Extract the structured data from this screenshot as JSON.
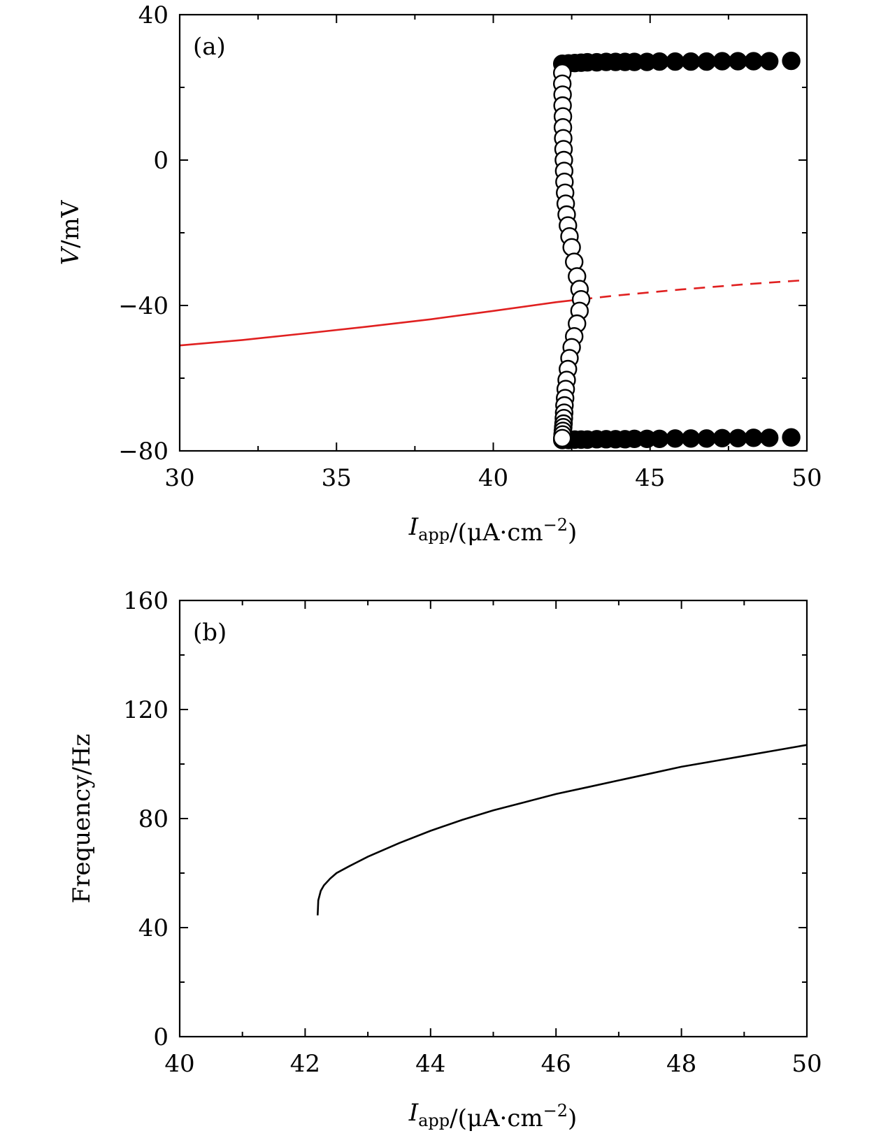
{
  "chart_data": [
    {
      "type": "scatter",
      "panel_label": "(a)",
      "xlabel": "I_app/(μA·cm^−2)",
      "ylabel": "V/mV",
      "xlim": [
        30,
        50
      ],
      "ylim": [
        -80,
        40
      ],
      "x_ticks": [
        30,
        35,
        40,
        45,
        50
      ],
      "y_ticks": [
        -80,
        -40,
        0,
        40
      ],
      "x_tick_labels": [
        "30",
        "35",
        "40",
        "45",
        "50"
      ],
      "y_tick_labels": [
        "−80",
        "−40",
        "0",
        "40"
      ],
      "grid": false,
      "colors": {
        "equilibrium": "#e02020",
        "markers": "#000000"
      },
      "series": [
        {
          "style": "solid-line",
          "color": "#e02020",
          "x": [
            30,
            32,
            34,
            36,
            38,
            40,
            42,
            42.8
          ],
          "y": [
            -51,
            -49.5,
            -47.7,
            -45.8,
            -43.8,
            -41.5,
            -39.1,
            -38.3
          ]
        },
        {
          "style": "dashed-line",
          "color": "#e02020",
          "x": [
            42.8,
            44,
            46,
            48,
            50
          ],
          "y": [
            -38.3,
            -37.2,
            -35.6,
            -34.2,
            -33
          ]
        },
        {
          "style": "filled-circles",
          "x": [
            42.2,
            42.4,
            42.6,
            42.8,
            43.0,
            43.3,
            43.6,
            43.9,
            44.2,
            44.5,
            44.9,
            45.3,
            45.8,
            46.3,
            46.8,
            47.3,
            47.8,
            48.3,
            48.8,
            49.5
          ],
          "y": [
            26.5,
            26.6,
            26.7,
            26.8,
            26.9,
            26.9,
            27,
            27,
            27,
            27,
            27,
            27.1,
            27.1,
            27.1,
            27.1,
            27.2,
            27.2,
            27.2,
            27.2,
            27.3
          ]
        },
        {
          "style": "filled-circles",
          "x": [
            42.2,
            42.4,
            42.6,
            42.8,
            43.0,
            43.3,
            43.6,
            43.9,
            44.2,
            44.5,
            44.9,
            45.3,
            45.8,
            46.3,
            46.8,
            47.3,
            47.8,
            48.3,
            48.8,
            49.5
          ],
          "y": [
            -77,
            -77,
            -76.9,
            -76.9,
            -76.9,
            -76.8,
            -76.8,
            -76.8,
            -76.8,
            -76.7,
            -76.7,
            -76.7,
            -76.6,
            -76.6,
            -76.6,
            -76.5,
            -76.5,
            -76.4,
            -76.4,
            -76.3
          ]
        },
        {
          "style": "open-circles",
          "x": [
            42.2,
            42.2,
            42.21,
            42.21,
            42.22,
            42.22,
            42.23,
            42.24,
            42.25,
            42.26,
            42.27,
            42.29,
            42.31,
            42.34,
            42.38,
            42.43,
            42.5,
            42.58,
            42.67,
            42.75,
            42.8,
            42.75,
            42.67,
            42.58,
            42.5,
            42.43,
            42.38,
            42.34,
            42.31,
            42.29,
            42.27,
            42.26,
            42.25,
            42.24,
            42.23,
            42.22,
            42.21,
            42.2
          ],
          "y": [
            24,
            21,
            18,
            15,
            12,
            9,
            6,
            3,
            0,
            -3,
            -6,
            -9,
            -12,
            -15,
            -18,
            -21,
            -24,
            -28,
            -32,
            -35.5,
            -38.3,
            -41.5,
            -45,
            -48.5,
            -51.5,
            -54.5,
            -57.5,
            -60.5,
            -63,
            -65.5,
            -67.5,
            -69.5,
            -71,
            -72.5,
            -73.5,
            -74.5,
            -75.5,
            -76.5
          ]
        }
      ]
    },
    {
      "type": "line",
      "panel_label": "(b)",
      "xlabel": "I_app/(μA·cm^−2)",
      "ylabel": "Frequency/Hz",
      "xlim": [
        40,
        50
      ],
      "ylim": [
        0,
        160
      ],
      "x_ticks": [
        40,
        42,
        44,
        46,
        48,
        50
      ],
      "y_ticks": [
        0,
        40,
        80,
        120,
        160
      ],
      "x_tick_labels": [
        "40",
        "42",
        "44",
        "46",
        "48",
        "50"
      ],
      "y_tick_labels": [
        "0",
        "40",
        "80",
        "120",
        "160"
      ],
      "grid": false,
      "series": [
        {
          "x": [
            42.2,
            42.21,
            42.25,
            42.3,
            42.4,
            42.5,
            42.7,
            43,
            43.5,
            44,
            44.5,
            45,
            45.5,
            46,
            46.5,
            47,
            47.5,
            48,
            48.5,
            49,
            49.5,
            50
          ],
          "y": [
            44.5,
            50,
            53.5,
            55.5,
            58,
            60,
            62.5,
            66,
            71,
            75.5,
            79.5,
            83,
            86,
            89,
            91.5,
            94,
            96.5,
            99,
            101,
            103,
            105,
            107
          ]
        }
      ]
    }
  ]
}
